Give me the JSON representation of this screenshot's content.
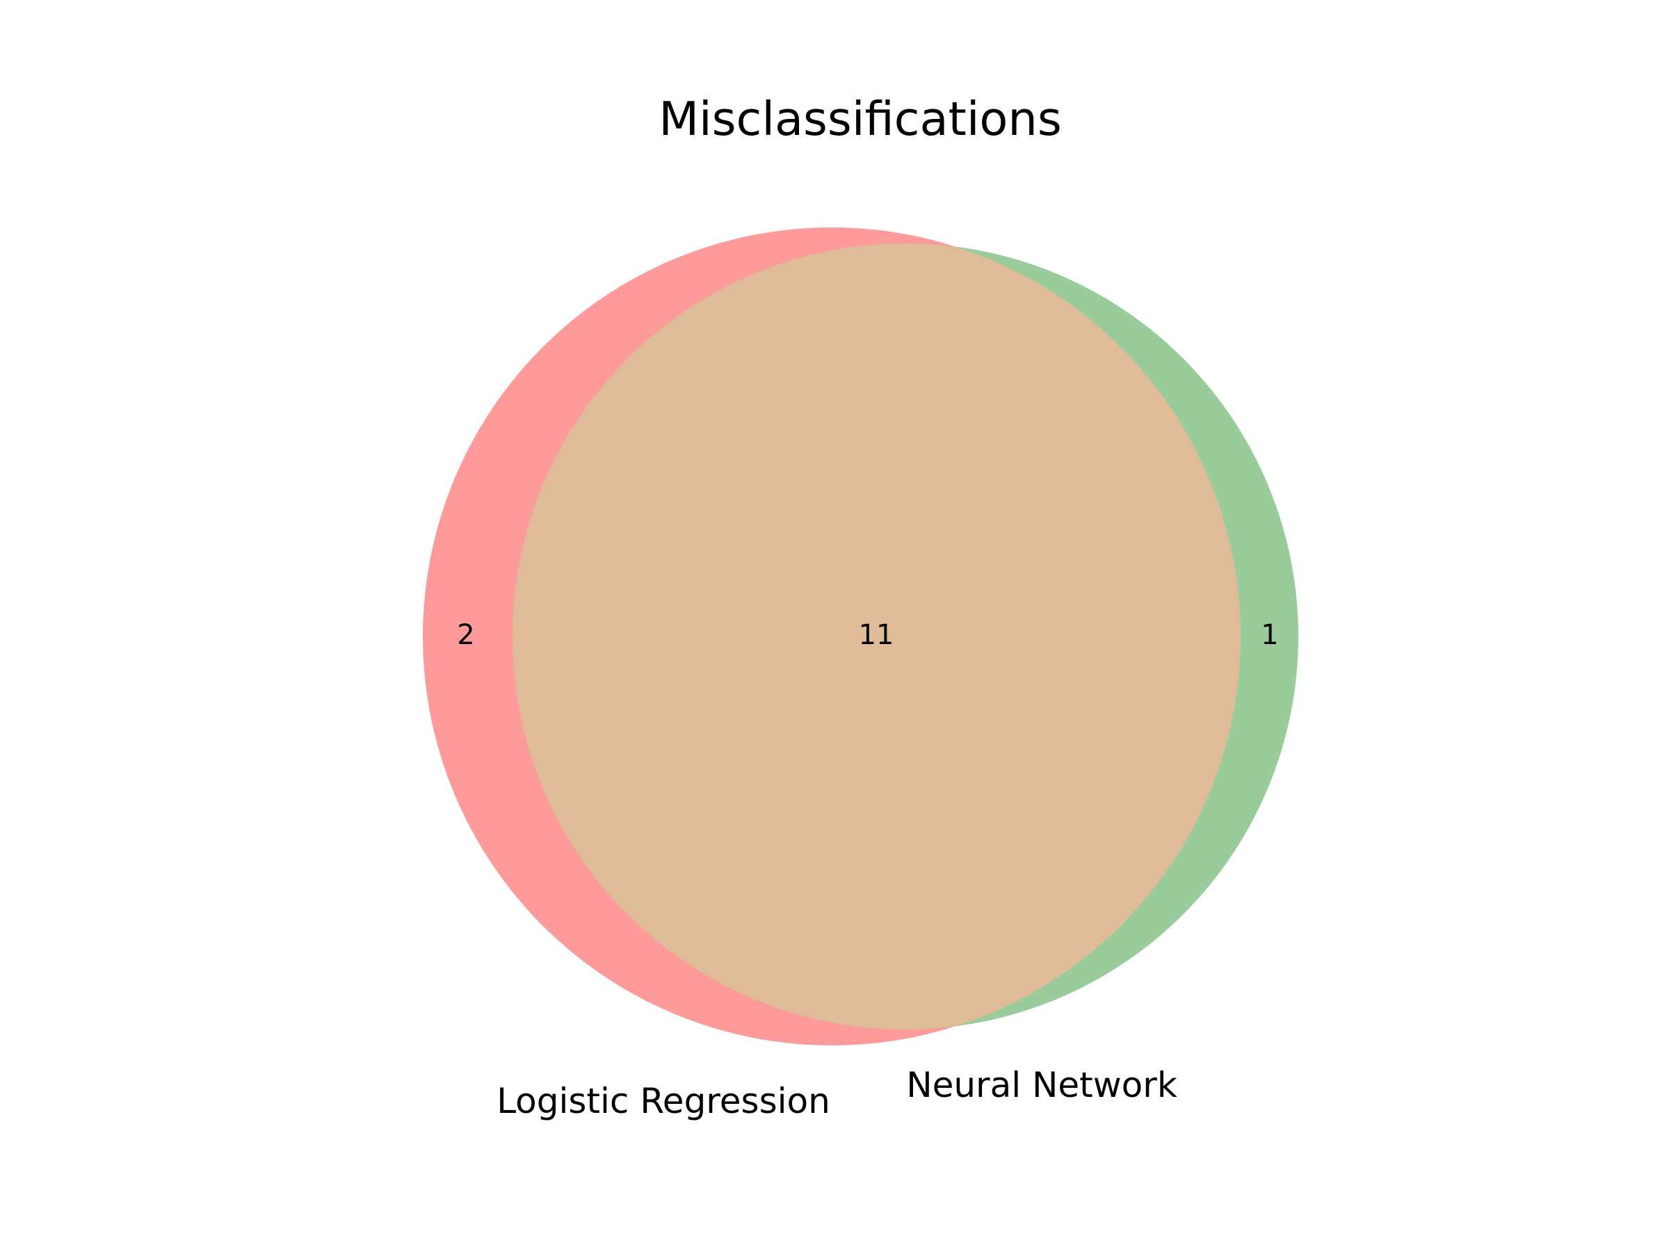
{
  "title": "Misclassifications",
  "sets": [
    {
      "name": "Logistic Regression",
      "only_count": "2",
      "color": "#fe9a9a"
    },
    {
      "name": "Neural Network",
      "only_count": "1",
      "color": "#9acb9a"
    }
  ],
  "overlap": {
    "count": "11",
    "color": "#dfbc98"
  }
}
